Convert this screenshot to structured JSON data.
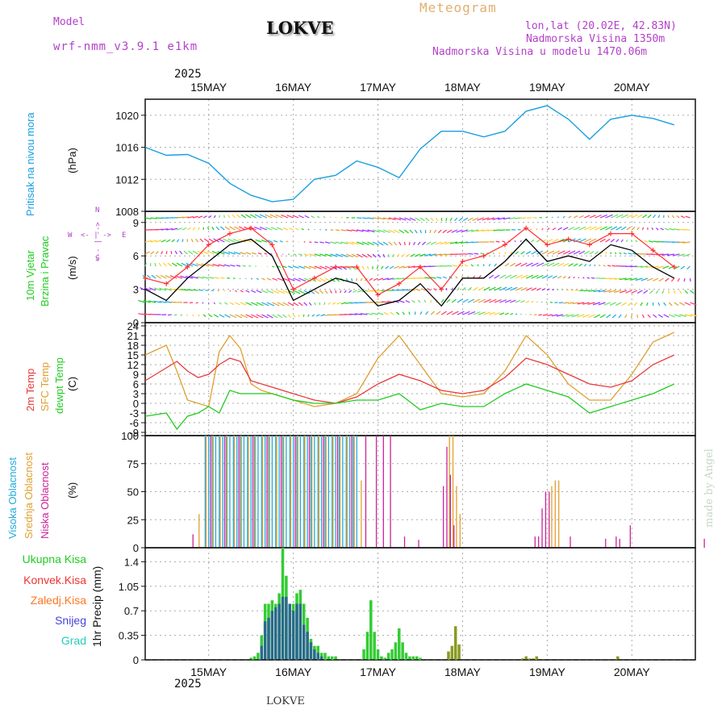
{
  "header": {
    "model_label": "Model",
    "model_name": "wrf-nmm_v3.9.1  e1km",
    "location": "LOKVE",
    "product": "Meteogram",
    "coords": "lon,lat (20.02E, 42.83N)",
    "altitude": "Nadmorska Visina 1350m",
    "model_altitude": "Nadmorska Visina u modelu 1470.06m"
  },
  "top_year": "2025",
  "bottom_year": "2025",
  "footer_location": "LOKVE",
  "watermark": "made by Angel",
  "dates": [
    "15MAY",
    "16MAY",
    "17MAY",
    "18MAY",
    "19MAY",
    "20MAY"
  ],
  "panel_labels": {
    "pressure": {
      "name": "Pritisak na nivou mora",
      "unit": "(hPa)"
    },
    "wind": {
      "name1": "10m Vjetar",
      "name2": "Brzina i Pravac",
      "unit": "(m/s)",
      "compass_w": "W",
      "compass_e": "E",
      "compass_n": "N",
      "compass_s": "S",
      "compass_ns": "<-- | -->",
      "compass_we": "<- | ->"
    },
    "temp": {
      "t2m": "2m Temp",
      "sfc": "SFC Temp",
      "dew": "dewpt Temp",
      "unit": "(C)"
    },
    "cloud": {
      "high": "Visoka Oblacnost",
      "mid": "Srednja Oblacnost",
      "low": "Niska Oblacnost",
      "unit": "(%)"
    },
    "precip": {
      "unit": "1hr Precip (mm)",
      "total": "Ukupna Kisa",
      "conv": "Konvek.Kisa",
      "frz": "Zaledj.Kisa",
      "snow": "Snijeg",
      "hail": "Grad"
    }
  },
  "colors": {
    "pressure": "#1a9fe0",
    "wind_speed": "#000000",
    "gust": "#ff3030",
    "t2m": "#e83a3a",
    "sfc": "#e0a030",
    "dew": "#22cc22",
    "high": "#22aadd",
    "mid": "#e0a030",
    "low": "#cc2299",
    "total": "#33cc33",
    "conv": "#ee3333",
    "frz": "#ff7722",
    "snow": "#4444dd",
    "hail": "#22ccbb"
  },
  "chart_data": [
    {
      "type": "line",
      "title": "Pritisak na nivou mora",
      "ylabel": "(hPa)",
      "ylim": [
        1008,
        1022
      ],
      "yticks": [
        1008,
        1012,
        1016,
        1020
      ],
      "x_unit": "hours from 15MAY 00UTC",
      "series": [
        {
          "name": "Pritisak na nivou mora",
          "x": [
            -6,
            0,
            6,
            12,
            18,
            24,
            30,
            36,
            42,
            48,
            54,
            60,
            66,
            72,
            78,
            84,
            90,
            96,
            102,
            108,
            114,
            120,
            126,
            132,
            138,
            144
          ],
          "y": [
            1016,
            1015,
            1015.1,
            1014,
            1011.5,
            1010,
            1009.2,
            1009.5,
            1012,
            1012.5,
            1014.3,
            1013.5,
            1012.2,
            1015.8,
            1018,
            1018,
            1017.3,
            1018,
            1020.5,
            1021.2,
            1019.5,
            1017,
            1019.5,
            1020,
            1019.6,
            1018.8
          ]
        }
      ]
    },
    {
      "type": "line",
      "title": "10m Vjetar Brzina i Pravac",
      "ylabel": "(m/s)",
      "ylim": [
        0,
        10
      ],
      "yticks": [
        0,
        3,
        6,
        9
      ],
      "series": [
        {
          "name": "speed",
          "x": [
            -6,
            0,
            6,
            12,
            18,
            24,
            30,
            36,
            42,
            48,
            54,
            60,
            66,
            72,
            78,
            84,
            90,
            96,
            102,
            108,
            114,
            120,
            126,
            132,
            138,
            144
          ],
          "y": [
            3,
            2,
            4,
            5.5,
            7,
            7.5,
            6,
            2,
            3,
            4,
            3.5,
            1.5,
            2,
            3.5,
            1.5,
            4,
            4,
            5.5,
            7.5,
            5.5,
            6,
            5.5,
            7,
            6.5,
            5,
            4
          ]
        },
        {
          "name": "gust",
          "x": [
            -6,
            0,
            6,
            12,
            18,
            24,
            30,
            36,
            42,
            48,
            54,
            60,
            66,
            72,
            78,
            84,
            90,
            96,
            102,
            108,
            114,
            120,
            126,
            132,
            138,
            144
          ],
          "y": [
            4,
            3.5,
            5,
            7,
            8,
            8.5,
            7,
            3,
            4,
            5,
            5,
            2.5,
            3.5,
            5,
            3,
            5.5,
            6,
            7,
            8.5,
            7,
            7.5,
            7,
            8,
            8,
            6.5,
            5
          ]
        }
      ]
    },
    {
      "type": "line",
      "title": "2m Temp / SFC Temp / dewpt Temp",
      "ylabel": "(C)",
      "ylim": [
        -10,
        25
      ],
      "yticks": [
        -9,
        -6,
        -3,
        0,
        3,
        6,
        9,
        12,
        15,
        18,
        21,
        24
      ],
      "series": [
        {
          "name": "2m Temp",
          "x": [
            -6,
            0,
            3,
            6,
            9,
            12,
            15,
            18,
            21,
            24,
            27,
            30,
            36,
            42,
            48,
            54,
            60,
            66,
            72,
            78,
            84,
            90,
            96,
            102,
            108,
            114,
            120,
            126,
            132,
            138,
            144
          ],
          "y": [
            7,
            11,
            13,
            10,
            8,
            9,
            12,
            14,
            13,
            7,
            6,
            5,
            3,
            1,
            0,
            2,
            6,
            9,
            7,
            4,
            3,
            4,
            8,
            14,
            12,
            9,
            6,
            5,
            7,
            12,
            15
          ]
        },
        {
          "name": "SFC Temp",
          "x": [
            -6,
            0,
            3,
            6,
            9,
            12,
            15,
            18,
            21,
            24,
            27,
            30,
            36,
            42,
            48,
            54,
            60,
            66,
            72,
            78,
            84,
            90,
            96,
            102,
            108,
            114,
            120,
            126,
            132,
            138,
            144
          ],
          "y": [
            15,
            18,
            10,
            1,
            0,
            -1,
            16,
            21,
            17,
            6,
            4,
            3,
            1,
            -1,
            0,
            3,
            14,
            21,
            12,
            3,
            2,
            3,
            10,
            21,
            15,
            6,
            1,
            1,
            9,
            19,
            22
          ]
        },
        {
          "name": "dewpt Temp",
          "x": [
            -6,
            0,
            3,
            6,
            9,
            12,
            15,
            18,
            21,
            24,
            27,
            30,
            36,
            42,
            48,
            54,
            60,
            66,
            72,
            78,
            84,
            90,
            96,
            102,
            108,
            114,
            120,
            126,
            132,
            138,
            144
          ],
          "y": [
            -4,
            -3,
            -8,
            -4,
            -3,
            -1,
            -3,
            4,
            3,
            3,
            3,
            3,
            1,
            0,
            0,
            1,
            1,
            3,
            -2,
            0,
            -1,
            -1,
            3,
            6,
            4,
            2,
            -3,
            -1,
            1,
            3,
            6
          ]
        }
      ]
    },
    {
      "type": "bar",
      "title": "Visoka / Srednja / Niska Oblacnost",
      "ylabel": "(%)",
      "ylim": [
        0,
        100
      ],
      "yticks": [
        0,
        25,
        50,
        75,
        100
      ],
      "series": [
        {
          "name": "Visoka Oblacnost",
          "x": [
            9,
            10,
            11,
            12,
            13,
            14,
            15,
            16,
            17,
            18,
            19,
            20,
            21,
            22,
            23,
            24,
            25,
            26,
            27,
            28,
            29,
            30,
            31,
            32,
            33,
            34,
            35,
            36,
            37,
            38,
            39,
            40,
            41,
            42,
            43,
            44,
            45,
            46,
            47,
            48,
            49,
            50,
            51,
            52,
            53,
            54
          ],
          "y": [
            0,
            0,
            100,
            100,
            100,
            100,
            100,
            100,
            100,
            100,
            100,
            100,
            100,
            100,
            100,
            100,
            100,
            100,
            100,
            100,
            100,
            100,
            100,
            100,
            100,
            100,
            100,
            100,
            100,
            100,
            100,
            100,
            100,
            100,
            100,
            100,
            100,
            100,
            100,
            100,
            100,
            100,
            100,
            100,
            100,
            100
          ]
        },
        {
          "name": "Srednja Oblacnost",
          "x": [
            9,
            11,
            13,
            15,
            17,
            19,
            21,
            23,
            25,
            27,
            29,
            31,
            33,
            35,
            37,
            39,
            41,
            43,
            45,
            47,
            49,
            51,
            53,
            55,
            80,
            81,
            82,
            83,
            109,
            110,
            111
          ],
          "y": [
            30,
            100,
            100,
            100,
            100,
            100,
            100,
            100,
            100,
            100,
            100,
            100,
            100,
            100,
            100,
            100,
            100,
            100,
            100,
            100,
            100,
            100,
            100,
            60,
            100,
            100,
            55,
            30,
            55,
            60,
            60
          ]
        },
        {
          "name": "Niska Oblacnost",
          "x": [
            7,
            12,
            16,
            20,
            24,
            28,
            32,
            36,
            40,
            44,
            48,
            52,
            56,
            59,
            61,
            63,
            67,
            71,
            78,
            79,
            80,
            81,
            104,
            105,
            106,
            107,
            108,
            114,
            124,
            127,
            128,
            131,
            152
          ],
          "y": [
            12,
            100,
            100,
            100,
            100,
            100,
            100,
            100,
            100,
            100,
            100,
            100,
            100,
            100,
            100,
            100,
            10,
            7,
            55,
            90,
            65,
            20,
            10,
            10,
            35,
            50,
            50,
            10,
            8,
            10,
            8,
            20,
            8
          ]
        }
      ]
    },
    {
      "type": "bar",
      "title": "1hr Precip",
      "ylabel": "1hr Precip (mm)",
      "ylim": [
        0,
        1.6
      ],
      "yticks": [
        0,
        0.35,
        0.7,
        1.05,
        1.4
      ],
      "series": [
        {
          "name": "Ukupna Kisa",
          "x": [
            24,
            25,
            26,
            27,
            28,
            29,
            30,
            31,
            32,
            33,
            34,
            35,
            36,
            37,
            38,
            39,
            40,
            41,
            42,
            43,
            44,
            45,
            46,
            47,
            48,
            56,
            57,
            58,
            59,
            60,
            61,
            62,
            63,
            64,
            65,
            66,
            67,
            68,
            69,
            70,
            71,
            72,
            80,
            81,
            82,
            83,
            101,
            102,
            103,
            104,
            105,
            128
          ],
          "y": [
            0.03,
            0.05,
            0.1,
            0.35,
            0.8,
            0.8,
            0.85,
            0.8,
            0.95,
            1.6,
            1.2,
            0.8,
            0.8,
            0.95,
            1.0,
            0.8,
            0.6,
            0.3,
            0.2,
            0.2,
            0.1,
            0.1,
            0.05,
            0.05,
            0.05,
            0.15,
            0.4,
            0.85,
            0.4,
            0.15,
            0.05,
            0.03,
            0.1,
            0.15,
            0.25,
            0.45,
            0.25,
            0.1,
            0.05,
            0.05,
            0.05,
            0.03,
            0.12,
            0.2,
            0.48,
            0.22,
            0.02,
            0.05,
            0.02,
            0.02,
            0.05,
            0.05
          ]
        },
        {
          "name": "Snijeg",
          "x": [
            27,
            28,
            29,
            30,
            31,
            32,
            33,
            34,
            35,
            36,
            37,
            38,
            39,
            40,
            41,
            42,
            43,
            44
          ],
          "y": [
            0.2,
            0.55,
            0.6,
            0.7,
            0.75,
            0.8,
            0.9,
            0.9,
            0.8,
            0.7,
            0.8,
            0.8,
            0.5,
            0.4,
            0.25,
            0.15,
            0.1,
            0.05
          ]
        }
      ]
    }
  ]
}
